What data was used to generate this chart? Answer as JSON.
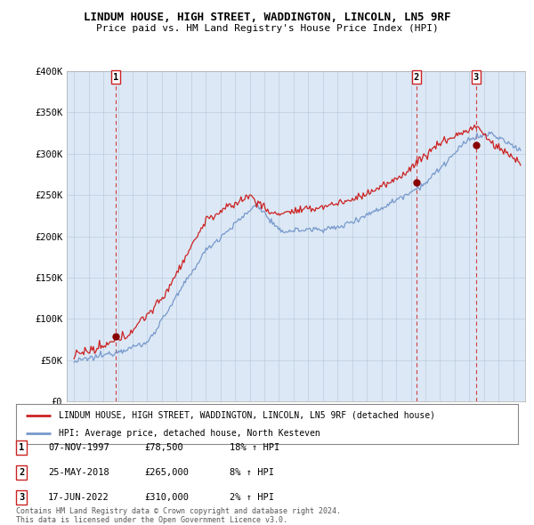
{
  "title": "LINDUM HOUSE, HIGH STREET, WADDINGTON, LINCOLN, LN5 9RF",
  "subtitle": "Price paid vs. HM Land Registry's House Price Index (HPI)",
  "ylim": [
    0,
    400000
  ],
  "yticks": [
    0,
    50000,
    100000,
    150000,
    200000,
    250000,
    300000,
    350000,
    400000
  ],
  "ytick_labels": [
    "£0",
    "£50K",
    "£100K",
    "£150K",
    "£200K",
    "£250K",
    "£300K",
    "£350K",
    "£400K"
  ],
  "sale_color": "#cc2222",
  "hpi_color": "#7799cc",
  "marker_color": "#880000",
  "vline_color": "#cc2222",
  "chart_bg": "#dce8f5",
  "sales": [
    {
      "date_num": 1997.85,
      "price": 78500,
      "label": "1"
    },
    {
      "date_num": 2018.38,
      "price": 265000,
      "label": "2"
    },
    {
      "date_num": 2022.46,
      "price": 310000,
      "label": "3"
    }
  ],
  "legend_sale_label": "LINDUM HOUSE, HIGH STREET, WADDINGTON, LINCOLN, LN5 9RF (detached house)",
  "legend_hpi_label": "HPI: Average price, detached house, North Kesteven",
  "table_rows": [
    {
      "num": "1",
      "date": "07-NOV-1997",
      "price": "£78,500",
      "hpi": "18% ↑ HPI"
    },
    {
      "num": "2",
      "date": "25-MAY-2018",
      "price": "£265,000",
      "hpi": "8% ↑ HPI"
    },
    {
      "num": "3",
      "date": "17-JUN-2022",
      "price": "£310,000",
      "hpi": "2% ↑ HPI"
    }
  ],
  "footer": "Contains HM Land Registry data © Crown copyright and database right 2024.\nThis data is licensed under the Open Government Licence v3.0.",
  "background_color": "#ffffff",
  "grid_color": "#bbccdd"
}
